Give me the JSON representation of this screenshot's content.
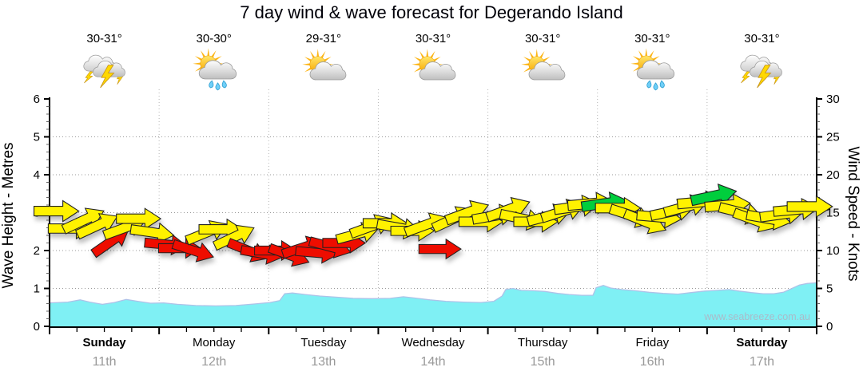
{
  "title": "7 day wind & wave forecast for Degerando Island",
  "watermark": "www.seabreeze.com.au",
  "days": [
    {
      "name": "Sunday",
      "date": "11th",
      "bold": true,
      "temp": "30-31°",
      "icon": "storm-icon"
    },
    {
      "name": "Monday",
      "date": "12th",
      "bold": false,
      "temp": "30-30°",
      "icon": "sun-rain-icon"
    },
    {
      "name": "Tuesday",
      "date": "13th",
      "bold": false,
      "temp": "29-31°",
      "icon": "sun-cloud-icon"
    },
    {
      "name": "Wednesday",
      "date": "14th",
      "bold": false,
      "temp": "30-31°",
      "icon": "sun-cloud-icon"
    },
    {
      "name": "Thursday",
      "date": "15th",
      "bold": false,
      "temp": "30-31°",
      "icon": "sun-cloud-icon"
    },
    {
      "name": "Friday",
      "date": "16th",
      "bold": false,
      "temp": "30-31°",
      "icon": "sun-rain-icon"
    },
    {
      "name": "Saturday",
      "date": "17th",
      "bold": true,
      "temp": "30-31°",
      "icon": "storm-icon"
    }
  ],
  "chart_data": {
    "type": "area+quiver",
    "title": "7 day wind & wave forecast for Degerando Island",
    "left_axis": {
      "label": "Wave Height - Metres",
      "lim": [
        0,
        6
      ],
      "ticks": [
        0,
        1,
        2,
        3,
        4,
        5,
        6
      ],
      "minor_step": 0.2
    },
    "right_axis": {
      "label": "Wind Speed - Knots",
      "lim": [
        0,
        30
      ],
      "ticks": [
        0,
        5,
        10,
        15,
        20,
        25,
        30
      ],
      "minor_step": 1
    },
    "x_axis": {
      "total_hours": 168,
      "day_boundaries_hours": [
        0,
        24,
        48,
        72,
        96,
        120,
        144,
        168
      ],
      "minor_tick_hours": 6,
      "grid": "dotted"
    },
    "wave_color": "#7FF0F4",
    "wave_edge_color": "#AEC2E8",
    "arrow_colors": {
      "y": "#FFF200",
      "r": "#EE0800",
      "g": "#00CE3C"
    },
    "wave_height_m_format": [
      "hour",
      "metres"
    ],
    "wave_height_m": [
      [
        0,
        0.62
      ],
      [
        4,
        0.64
      ],
      [
        6.7,
        0.7
      ],
      [
        8.8,
        0.64
      ],
      [
        11.6,
        0.58
      ],
      [
        14.2,
        0.63
      ],
      [
        16.8,
        0.71
      ],
      [
        19.3,
        0.66
      ],
      [
        22.1,
        0.61
      ],
      [
        25,
        0.62
      ],
      [
        28,
        0.58
      ],
      [
        32,
        0.55
      ],
      [
        36.4,
        0.54
      ],
      [
        40.8,
        0.55
      ],
      [
        44.8,
        0.59
      ],
      [
        48.3,
        0.63
      ],
      [
        50.4,
        0.68
      ],
      [
        51.5,
        0.86
      ],
      [
        53.2,
        0.88
      ],
      [
        56,
        0.84
      ],
      [
        59.2,
        0.8
      ],
      [
        62.7,
        0.77
      ],
      [
        66.5,
        0.74
      ],
      [
        70.5,
        0.73
      ],
      [
        74.6,
        0.74
      ],
      [
        77.5,
        0.78
      ],
      [
        79.8,
        0.75
      ],
      [
        83.3,
        0.7
      ],
      [
        86.8,
        0.66
      ],
      [
        90.7,
        0.64
      ],
      [
        94.5,
        0.63
      ],
      [
        97.3,
        0.66
      ],
      [
        99.1,
        0.8
      ],
      [
        99.9,
        0.97
      ],
      [
        101.5,
        1.0
      ],
      [
        103.3,
        0.95
      ],
      [
        106.1,
        0.94
      ],
      [
        108.5,
        0.92
      ],
      [
        111.3,
        0.87
      ],
      [
        113.8,
        0.84
      ],
      [
        116.6,
        0.82
      ],
      [
        119,
        0.82
      ],
      [
        119.7,
        1.02
      ],
      [
        121.3,
        1.08
      ],
      [
        122.9,
        1.01
      ],
      [
        125.3,
        0.97
      ],
      [
        128.3,
        0.94
      ],
      [
        131.3,
        0.9
      ],
      [
        134.4,
        0.87
      ],
      [
        137.6,
        0.85
      ],
      [
        140.5,
        0.89
      ],
      [
        143.5,
        0.93
      ],
      [
        146.3,
        0.95
      ],
      [
        148.8,
        0.97
      ],
      [
        151,
        0.93
      ],
      [
        153.7,
        0.89
      ],
      [
        156.3,
        0.86
      ],
      [
        158.6,
        0.86
      ],
      [
        160.7,
        0.9
      ],
      [
        162.4,
        0.99
      ],
      [
        164.2,
        1.09
      ],
      [
        165.9,
        1.13
      ],
      [
        168,
        1.15
      ]
    ],
    "wind_arrows_format": [
      "hour",
      "knots",
      "angle_deg",
      "color"
    ],
    "wind_arrows": [
      [
        1.5,
        15.2,
        0,
        "y"
      ],
      [
        4.5,
        12.9,
        0,
        "y"
      ],
      [
        7.5,
        14.0,
        -25,
        "y"
      ],
      [
        10.5,
        13.3,
        -25,
        "y"
      ],
      [
        13.5,
        11.2,
        -35,
        "r"
      ],
      [
        16.5,
        13.0,
        -20,
        "y"
      ],
      [
        19.5,
        14.2,
        0,
        "y"
      ],
      [
        22.5,
        12.4,
        8,
        "y"
      ],
      [
        25.5,
        10.8,
        5,
        "r"
      ],
      [
        28.5,
        10.3,
        0,
        "r"
      ],
      [
        31.5,
        10.0,
        18,
        "r"
      ],
      [
        34.5,
        12.4,
        -22,
        "y"
      ],
      [
        37.5,
        12.8,
        0,
        "y"
      ],
      [
        40.5,
        11.8,
        -25,
        "y"
      ],
      [
        43.5,
        10.0,
        22,
        "r"
      ],
      [
        46.5,
        9.6,
        10,
        "r"
      ],
      [
        49.5,
        10.0,
        0,
        "r"
      ],
      [
        52.5,
        9.4,
        20,
        "r"
      ],
      [
        55.5,
        10.4,
        -18,
        "r"
      ],
      [
        58.5,
        9.7,
        5,
        "r"
      ],
      [
        61.5,
        10.5,
        15,
        "r"
      ],
      [
        64.5,
        11.0,
        0,
        "r"
      ],
      [
        67.5,
        12.2,
        -15,
        "y"
      ],
      [
        70.5,
        13.2,
        -20,
        "y"
      ],
      [
        73.5,
        13.6,
        0,
        "y"
      ],
      [
        76.5,
        13.0,
        10,
        "y"
      ],
      [
        79.5,
        12.6,
        0,
        "y"
      ],
      [
        82.5,
        13.4,
        -20,
        "y"
      ],
      [
        85.5,
        10.2,
        0,
        "r"
      ],
      [
        88.5,
        14.2,
        -25,
        "y"
      ],
      [
        91.5,
        15.0,
        -20,
        "y"
      ],
      [
        94.5,
        13.8,
        0,
        "y"
      ],
      [
        97.5,
        14.6,
        -10,
        "y"
      ],
      [
        100.5,
        15.4,
        -20,
        "y"
      ],
      [
        103.5,
        14.2,
        12,
        "y"
      ],
      [
        106.5,
        13.8,
        0,
        "y"
      ],
      [
        109.5,
        14.6,
        -15,
        "y"
      ],
      [
        112.5,
        15.2,
        -18,
        "y"
      ],
      [
        115.5,
        15.8,
        -8,
        "y"
      ],
      [
        118.5,
        16.2,
        -5,
        "y"
      ],
      [
        121.5,
        16.2,
        -8,
        "g"
      ],
      [
        124.5,
        15.6,
        0,
        "y"
      ],
      [
        127.5,
        14.6,
        18,
        "y"
      ],
      [
        130.5,
        13.8,
        22,
        "y"
      ],
      [
        133.5,
        14.4,
        5,
        "y"
      ],
      [
        136.5,
        15.2,
        -12,
        "y"
      ],
      [
        139.5,
        15.8,
        -15,
        "y"
      ],
      [
        142.5,
        16.4,
        -5,
        "y"
      ],
      [
        145.5,
        17.2,
        -12,
        "g"
      ],
      [
        148.5,
        16.0,
        -5,
        "y"
      ],
      [
        151.5,
        15.0,
        14,
        "y"
      ],
      [
        154.5,
        14.0,
        20,
        "y"
      ],
      [
        157.5,
        14.2,
        10,
        "y"
      ],
      [
        160.5,
        14.8,
        -8,
        "y"
      ],
      [
        163.5,
        15.4,
        -5,
        "y"
      ],
      [
        166.5,
        15.8,
        0,
        "y"
      ]
    ]
  }
}
